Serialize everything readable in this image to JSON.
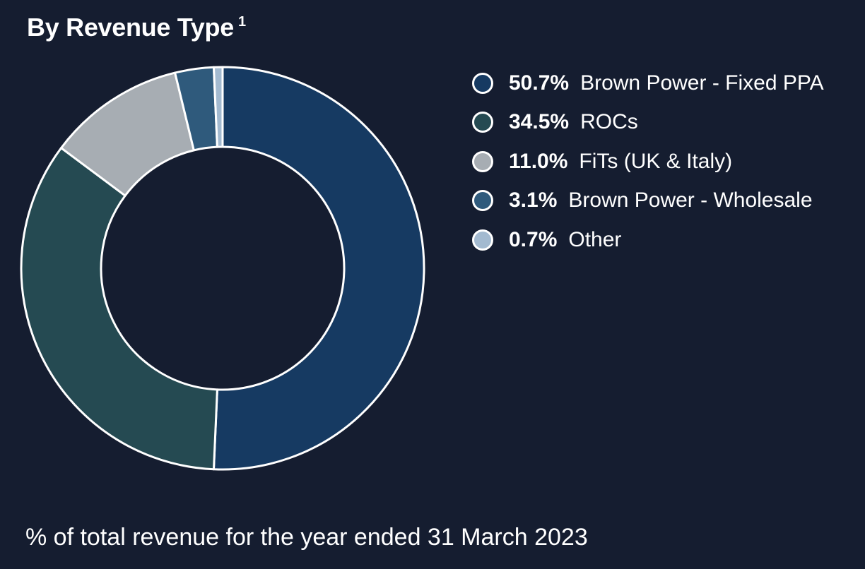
{
  "title": "By Revenue Type",
  "title_superscript": "1",
  "footnote": "% of total revenue for the year ended 31 March 2023",
  "chart_data": {
    "type": "pie",
    "variant": "donut",
    "legend_placement": "right",
    "series": [
      {
        "name": "Brown Power - Fixed PPA",
        "label": "50.7%",
        "value": 50.7,
        "color": "#163a62"
      },
      {
        "name": "ROCs",
        "label": "34.5%",
        "value": 34.5,
        "color": "#254a52"
      },
      {
        "name": "FiTs (UK & Italy)",
        "label": "11.0%",
        "value": 11.0,
        "color": "#a7adb3"
      },
      {
        "name": "Brown Power - Wholesale",
        "label": "3.1%",
        "value": 3.1,
        "color": "#2f5a7c"
      },
      {
        "name": "Other",
        "label": "0.7%",
        "value": 0.7,
        "color": "#a3bad0"
      }
    ]
  }
}
